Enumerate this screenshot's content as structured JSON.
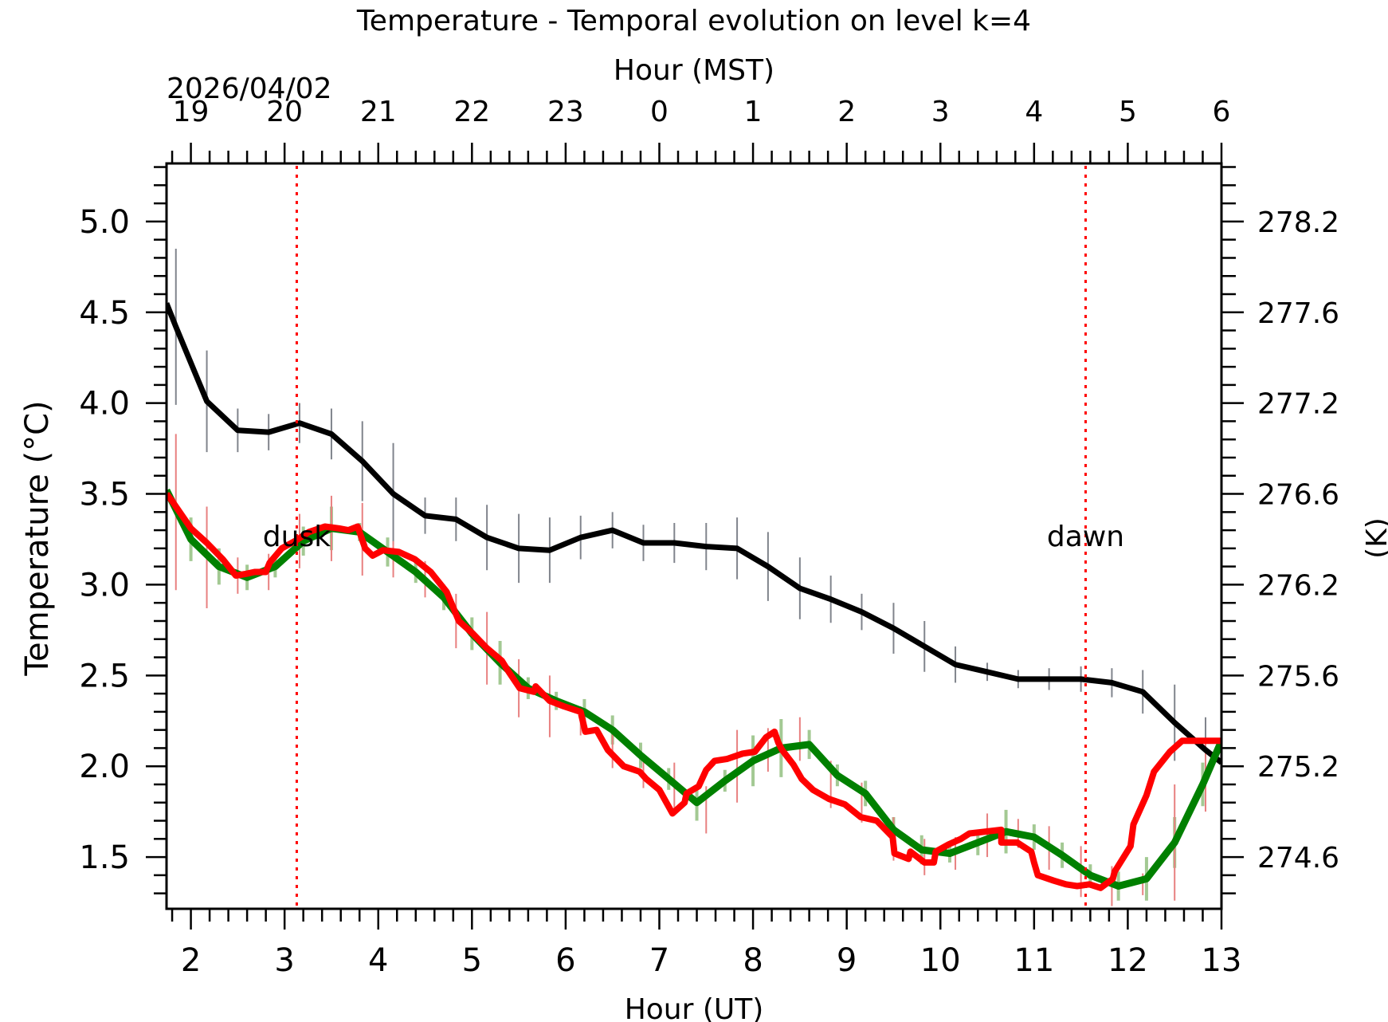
{
  "chart_data": {
    "type": "line",
    "title": "Temperature - Temporal evolution on level k=4",
    "xlabel": "Hour (UT)",
    "x2label": "Hour (MST)",
    "ylabel": "Temperature (°C)",
    "y2label": "(K)",
    "date_label": "2026/04/02",
    "xlim": [
      1.74,
      13.0
    ],
    "ylim": [
      1.215,
      5.32
    ],
    "xticks": [
      "2",
      "3",
      "4",
      "5",
      "6",
      "7",
      "8",
      "9",
      "10",
      "11",
      "12",
      "13"
    ],
    "xtick_values": [
      2,
      3,
      4,
      5,
      6,
      7,
      8,
      9,
      10,
      11,
      12,
      13
    ],
    "x2ticks": [
      "19",
      "20",
      "21",
      "22",
      "23",
      "0",
      "1",
      "2",
      "3",
      "4",
      "5",
      "6"
    ],
    "yticks": [
      "1.5",
      "2.0",
      "2.5",
      "3.0",
      "3.5",
      "4.0",
      "4.5",
      "5.0"
    ],
    "ytick_values": [
      1.5,
      2.0,
      2.5,
      3.0,
      3.5,
      4.0,
      4.5,
      5.0
    ],
    "y2ticks": [
      "274.6",
      "275.2",
      "275.6",
      "276.2",
      "276.6",
      "277.2",
      "277.6",
      "278.2"
    ],
    "annotations": [
      {
        "text": "dusk",
        "x": 3.13,
        "color": "#ff0000"
      },
      {
        "text": "dawn",
        "x": 11.55,
        "color": "#ff0000"
      }
    ],
    "series": [
      {
        "name": "black",
        "color": "#000000",
        "errcolor": "#80848c",
        "x": [
          1.74,
          1.84,
          2.17,
          2.5,
          2.83,
          3.16,
          3.5,
          3.83,
          4.16,
          4.5,
          4.83,
          5.16,
          5.5,
          5.83,
          6.16,
          6.5,
          6.83,
          7.16,
          7.5,
          7.83,
          8.16,
          8.5,
          8.83,
          9.16,
          9.5,
          9.83,
          10.16,
          10.5,
          10.83,
          11.16,
          11.5,
          11.83,
          12.16,
          12.5,
          12.83,
          13.0
        ],
        "y": [
          4.55,
          4.42,
          4.01,
          3.85,
          3.84,
          3.89,
          3.83,
          3.68,
          3.5,
          3.38,
          3.36,
          3.26,
          3.2,
          3.19,
          3.26,
          3.3,
          3.23,
          3.23,
          3.21,
          3.2,
          3.1,
          2.98,
          2.92,
          2.85,
          2.76,
          2.66,
          2.56,
          2.52,
          2.48,
          2.48,
          2.48,
          2.46,
          2.41,
          2.24,
          2.09,
          2.02
        ],
        "err": [
          0,
          0.43,
          0.28,
          0.12,
          0.1,
          0.11,
          0.14,
          0.22,
          0.28,
          0.1,
          0.12,
          0.18,
          0.19,
          0.18,
          0.12,
          0.1,
          0.1,
          0.11,
          0.13,
          0.17,
          0.19,
          0.17,
          0.13,
          0.1,
          0.14,
          0.14,
          0.1,
          0.05,
          0.05,
          0.06,
          0.07,
          0.08,
          0.12,
          0.21,
          0.18,
          0
        ]
      },
      {
        "name": "green",
        "color": "#008000",
        "errcolor": "#a3c993",
        "x": [
          1.74,
          2.0,
          2.3,
          2.6,
          2.9,
          3.2,
          3.5,
          3.8,
          4.1,
          4.4,
          4.7,
          5.0,
          5.3,
          5.6,
          5.9,
          6.2,
          6.5,
          6.8,
          7.1,
          7.4,
          7.7,
          8.0,
          8.3,
          8.6,
          8.9,
          9.2,
          9.5,
          9.8,
          10.1,
          10.4,
          10.7,
          11.0,
          11.3,
          11.6,
          11.9,
          12.2,
          12.5,
          12.8,
          13.0
        ],
        "y": [
          3.52,
          3.25,
          3.1,
          3.04,
          3.1,
          3.24,
          3.31,
          3.29,
          3.18,
          3.07,
          2.93,
          2.73,
          2.57,
          2.43,
          2.36,
          2.3,
          2.2,
          2.06,
          1.93,
          1.8,
          1.92,
          2.03,
          2.1,
          2.12,
          1.95,
          1.85,
          1.65,
          1.54,
          1.52,
          1.58,
          1.64,
          1.61,
          1.51,
          1.4,
          1.34,
          1.38,
          1.58,
          1.9,
          2.14
        ],
        "err": [
          0,
          0.12,
          0.1,
          0.07,
          0.06,
          0.08,
          0.12,
          0.05,
          0.08,
          0.06,
          0.07,
          0.09,
          0.12,
          0.06,
          0.05,
          0.07,
          0.08,
          0.07,
          0.06,
          0.1,
          0.06,
          0.14,
          0.16,
          0.08,
          0.06,
          0.07,
          0.07,
          0.08,
          0.05,
          0.07,
          0.12,
          0.07,
          0.07,
          0.06,
          0.08,
          0.12,
          0.14,
          0.12,
          0
        ]
      },
      {
        "name": "red",
        "color": "#ff0000",
        "errcolor": "#e88080",
        "x": [
          1.74,
          1.8,
          2.0,
          2.17,
          2.34,
          2.48,
          2.59,
          2.68,
          2.8,
          2.84,
          2.97,
          3.11,
          3.26,
          3.43,
          3.58,
          3.68,
          3.78,
          3.86,
          3.94,
          4.05,
          4.22,
          4.39,
          4.56,
          4.73,
          4.86,
          5.01,
          5.16,
          5.32,
          5.38,
          5.51,
          5.66,
          5.68,
          5.83,
          5.98,
          6.16,
          6.21,
          6.33,
          6.45,
          6.62,
          6.79,
          6.86,
          7.0,
          7.14,
          7.27,
          7.29,
          7.42,
          7.5,
          7.59,
          7.72,
          7.89,
          8.02,
          8.14,
          8.23,
          8.27,
          8.31,
          8.43,
          8.52,
          8.64,
          8.81,
          8.98,
          9.15,
          9.32,
          9.49,
          9.51,
          9.66,
          9.68,
          9.83,
          9.93,
          9.95,
          10.09,
          10.22,
          10.31,
          10.48,
          10.65,
          10.65,
          10.82,
          10.97,
          11.0,
          11.04,
          11.21,
          11.34,
          11.46,
          11.59,
          11.71,
          11.84,
          11.86,
          12.03,
          12.06,
          12.2,
          12.28,
          12.45,
          12.58,
          12.71,
          12.86,
          13.0
        ],
        "y": [
          3.5,
          3.46,
          3.31,
          3.23,
          3.14,
          3.05,
          3.06,
          3.07,
          3.07,
          3.12,
          3.2,
          3.24,
          3.29,
          3.32,
          3.31,
          3.3,
          3.32,
          3.2,
          3.16,
          3.19,
          3.18,
          3.14,
          3.07,
          2.96,
          2.8,
          2.73,
          2.65,
          2.58,
          2.53,
          2.43,
          2.41,
          2.44,
          2.36,
          2.33,
          2.3,
          2.19,
          2.2,
          2.09,
          2.0,
          1.97,
          1.93,
          1.87,
          1.74,
          1.8,
          1.85,
          1.89,
          1.98,
          2.03,
          2.04,
          2.07,
          2.08,
          2.16,
          2.19,
          2.13,
          2.09,
          2.01,
          1.93,
          1.87,
          1.82,
          1.79,
          1.72,
          1.7,
          1.61,
          1.52,
          1.49,
          1.53,
          1.47,
          1.47,
          1.53,
          1.57,
          1.6,
          1.63,
          1.64,
          1.65,
          1.58,
          1.58,
          1.53,
          1.47,
          1.4,
          1.37,
          1.35,
          1.34,
          1.35,
          1.33,
          1.38,
          1.42,
          1.56,
          1.68,
          1.84,
          1.97,
          2.08,
          2.14,
          2.14,
          2.14,
          2.14
        ],
        "err_x": [
          1.84,
          2.17,
          2.5,
          2.83,
          3.16,
          3.5,
          3.83,
          4.16,
          4.5,
          4.83,
          5.16,
          5.5,
          5.83,
          6.16,
          6.5,
          6.83,
          7.16,
          7.5,
          7.83,
          8.16,
          8.5,
          8.83,
          9.16,
          9.5,
          9.83,
          10.16,
          10.5,
          10.83,
          11.16,
          11.5,
          11.83,
          12.16,
          12.5,
          12.83
        ],
        "err_y": [
          3.4,
          3.15,
          3.05,
          3.07,
          3.24,
          3.31,
          3.25,
          3.14,
          3.03,
          2.8,
          2.65,
          2.43,
          2.33,
          2.25,
          2.1,
          1.97,
          1.88,
          1.76,
          2.0,
          2.09,
          2.15,
          1.9,
          1.8,
          1.6,
          1.5,
          1.52,
          1.62,
          1.63,
          1.55,
          1.42,
          1.34,
          1.35,
          1.58,
          1.95
        ],
        "err_e": [
          0.43,
          0.28,
          0.1,
          0.1,
          0.15,
          0.18,
          0.2,
          0.1,
          0.1,
          0.15,
          0.2,
          0.16,
          0.17,
          0.08,
          0.11,
          0.09,
          0.14,
          0.13,
          0.2,
          0.12,
          0.12,
          0.13,
          0.11,
          0.12,
          0.1,
          0.09,
          0.12,
          0.08,
          0.12,
          0.14,
          0.11,
          0.06,
          0.32,
          0.2
        ]
      }
    ]
  }
}
